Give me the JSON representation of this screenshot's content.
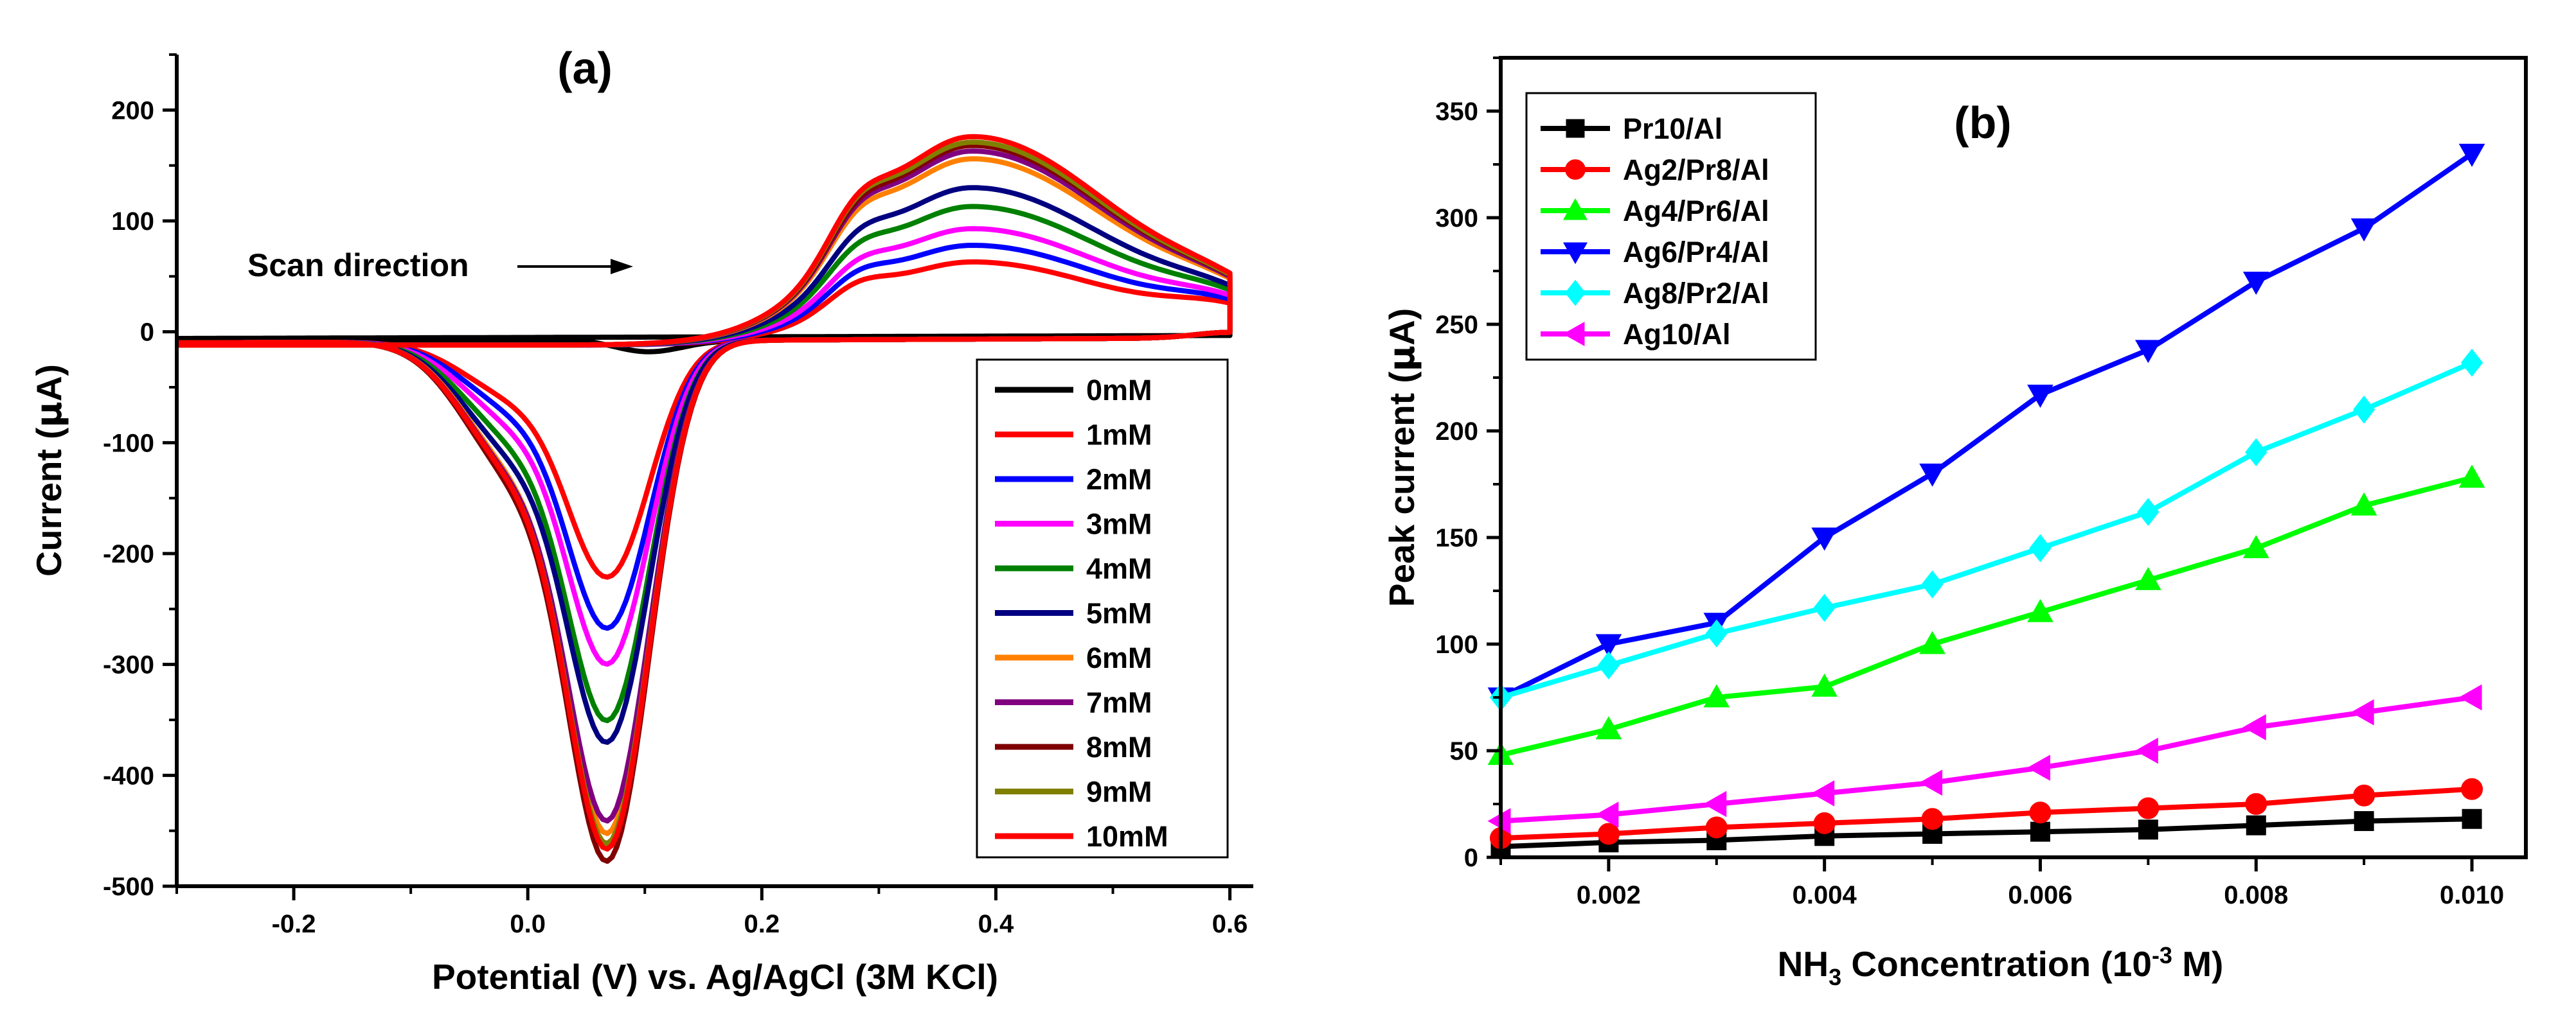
{
  "chart_data": [
    {
      "type": "line",
      "panel_label": "(a)",
      "xlabel": "Potential (V) vs. Ag/AgCl (3M KCl)",
      "ylabel_main": "Current (",
      "ylabel_sym": "μ",
      "ylabel_end": "A)",
      "xlim": [
        -0.3,
        0.62
      ],
      "ylim": [
        -500,
        250
      ],
      "xticks": [
        -0.2,
        0.0,
        0.2,
        0.4,
        0.6
      ],
      "xtick_labels": [
        "-0.2",
        "0.0",
        "0.2",
        "0.4",
        "0.6"
      ],
      "yticks": [
        -500,
        -400,
        -300,
        -200,
        -100,
        0,
        100,
        200
      ],
      "ytick_labels": [
        "-500",
        "-400",
        "-300",
        "-200",
        "-100",
        "0",
        "100",
        "200"
      ],
      "annotation": "Scan direction",
      "legend_position": "bottom-right",
      "series": [
        {
          "name": "0mM",
          "color": "#000000",
          "cathodic_peak": -12,
          "pre_peak": -2,
          "anodic_peak": 0,
          "anodic_shoulder": 0
        },
        {
          "name": "1mM",
          "color": "#ff0000",
          "cathodic_peak": -218,
          "pre_peak": -52,
          "anodic_peak": 75,
          "anodic_shoulder": 45
        },
        {
          "name": "2mM",
          "color": "#0000ff",
          "cathodic_peak": -262,
          "pre_peak": -63,
          "anodic_peak": 90,
          "anodic_shoulder": 50
        },
        {
          "name": "3mM",
          "color": "#ff00ff",
          "cathodic_peak": -292,
          "pre_peak": -75,
          "anodic_peak": 105,
          "anodic_shoulder": 55
        },
        {
          "name": "4mM",
          "color": "#008000",
          "cathodic_peak": -340,
          "pre_peak": -90,
          "anodic_peak": 125,
          "anodic_shoulder": 65
        },
        {
          "name": "5mM",
          "color": "#000080",
          "cathodic_peak": -357,
          "pre_peak": -103,
          "anodic_peak": 142,
          "anodic_shoulder": 72
        },
        {
          "name": "6mM",
          "color": "#ff8000",
          "cathodic_peak": -437,
          "pre_peak": -115,
          "anodic_peak": 168,
          "anodic_shoulder": 85
        },
        {
          "name": "7mM",
          "color": "#800080",
          "cathodic_peak": -425,
          "pre_peak": -118,
          "anodic_peak": 175,
          "anodic_shoulder": 88
        },
        {
          "name": "8mM",
          "color": "#800000",
          "cathodic_peak": -460,
          "pre_peak": -125,
          "anodic_peak": 180,
          "anodic_shoulder": 90
        },
        {
          "name": "9mM",
          "color": "#808000",
          "cathodic_peak": -445,
          "pre_peak": -120,
          "anodic_peak": 183,
          "anodic_shoulder": 95
        },
        {
          "name": "10mM",
          "color": "#ff0000",
          "cathodic_peak": -450,
          "pre_peak": -120,
          "anodic_peak": 188,
          "anodic_shoulder": 93
        }
      ]
    },
    {
      "type": "line",
      "panel_label": "(b)",
      "xlabel_main": "NH",
      "xlabel_sub": "3",
      "xlabel_mid": " Concentration (10",
      "xlabel_sup": "-3",
      "xlabel_end": " M)",
      "ylabel_main": "Peak current (",
      "ylabel_sym": "μ",
      "ylabel_end": "A)",
      "xlim": [
        0.001,
        0.0105
      ],
      "ylim": [
        0,
        375
      ],
      "xticks": [
        0.002,
        0.004,
        0.006,
        0.008,
        0.01
      ],
      "xtick_labels": [
        "0.002",
        "0.004",
        "0.006",
        "0.008",
        "0.010"
      ],
      "yticks": [
        0,
        50,
        100,
        150,
        200,
        250,
        300,
        350
      ],
      "ytick_labels": [
        "0",
        "50",
        "100",
        "150",
        "200",
        "250",
        "300",
        "350"
      ],
      "x": [
        0.001,
        0.002,
        0.003,
        0.004,
        0.005,
        0.006,
        0.007,
        0.008,
        0.009,
        0.01
      ],
      "legend_position": "top-left",
      "series": [
        {
          "name": "Pr10/Al",
          "color": "#000000",
          "marker": "square",
          "values": [
            5,
            7,
            8,
            10,
            11,
            12,
            13,
            15,
            17,
            18
          ]
        },
        {
          "name": "Ag2/Pr8/Al",
          "color": "#ff0000",
          "marker": "circle",
          "values": [
            9,
            11,
            14,
            16,
            18,
            21,
            23,
            25,
            29,
            32
          ]
        },
        {
          "name": "Ag4/Pr6/Al",
          "color": "#00ff00",
          "marker": "triangle-up",
          "values": [
            48,
            60,
            75,
            80,
            100,
            115,
            130,
            145,
            165,
            178
          ]
        },
        {
          "name": "Ag6/Pr4/Al",
          "color": "#0000ff",
          "marker": "triangle-down",
          "values": [
            75,
            100,
            110,
            150,
            180,
            217,
            238,
            270,
            295,
            330
          ]
        },
        {
          "name": "Ag8/Pr2/Al",
          "color": "#00ffff",
          "marker": "diamond",
          "values": [
            75,
            90,
            105,
            117,
            128,
            145,
            162,
            190,
            210,
            232
          ]
        },
        {
          "name": "Ag10/Al",
          "color": "#ff00ff",
          "marker": "triangle-left",
          "values": [
            17,
            20,
            25,
            30,
            35,
            42,
            50,
            61,
            68,
            75
          ]
        }
      ]
    }
  ]
}
